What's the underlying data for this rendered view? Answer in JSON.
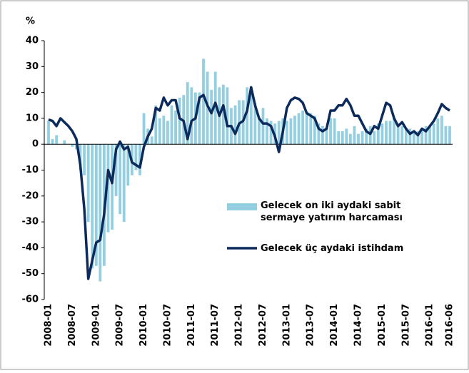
{
  "chart_data": {
    "type": "bar",
    "y_label": "%",
    "categories": [
      "2008-01",
      null,
      null,
      null,
      null,
      null,
      "2008-07",
      null,
      null,
      null,
      null,
      null,
      "2009-01",
      null,
      null,
      null,
      null,
      null,
      "2009-07",
      null,
      null,
      null,
      null,
      null,
      "2010-01",
      null,
      null,
      null,
      null,
      null,
      "2010-07",
      null,
      null,
      null,
      null,
      null,
      "2011-01",
      null,
      null,
      null,
      null,
      null,
      "2011-07",
      null,
      null,
      null,
      null,
      null,
      "2012-01",
      null,
      null,
      null,
      null,
      null,
      "2012-07",
      null,
      null,
      null,
      null,
      null,
      "2013-01",
      null,
      null,
      null,
      null,
      null,
      "2013-07",
      null,
      null,
      null,
      null,
      null,
      "2014-01",
      null,
      null,
      null,
      null,
      null,
      "2014-07",
      null,
      null,
      null,
      null,
      null,
      "2015-01",
      null,
      null,
      null,
      null,
      null,
      "2015-07",
      null,
      null,
      null,
      null,
      null,
      "2016-01",
      null,
      null,
      null,
      null,
      "2016-06"
    ],
    "series": [
      {
        "name": "Gelecek on iki aydaki sabit sermaye yatırım harcaması",
        "type": "bar",
        "color": "#93cfe0",
        "values": [
          9,
          2,
          3.5,
          0,
          1.5,
          0,
          -1,
          -2,
          -10,
          -12,
          -30,
          -48,
          -47,
          -53,
          -47,
          -34,
          -33,
          -20,
          -27,
          -30,
          -16,
          -12,
          -10,
          -12,
          12,
          6,
          3,
          15,
          10,
          11,
          9,
          15,
          13,
          18,
          19,
          24,
          22,
          20,
          20,
          33,
          28,
          21,
          28,
          22,
          23,
          22,
          14,
          15,
          17,
          17,
          22,
          22,
          16,
          10,
          14,
          10,
          9,
          8,
          9,
          10,
          9,
          10,
          11,
          12,
          13,
          12.5,
          12,
          11,
          8,
          7,
          6,
          10,
          10,
          5,
          5,
          6,
          4,
          7,
          4,
          5,
          6,
          7,
          5,
          8,
          8,
          9,
          9,
          10,
          8,
          7,
          6,
          6,
          5,
          5,
          6,
          7,
          7,
          8,
          10,
          11,
          7,
          7
        ]
      },
      {
        "name": "Gelecek üç aydaki istihdam",
        "type": "line",
        "color": "#0c2a5c",
        "values": [
          9.5,
          9,
          7,
          10,
          8.5,
          7,
          5,
          2,
          -8,
          -25,
          -52,
          -45,
          -38,
          -37,
          -27,
          -10,
          -15,
          -2,
          1,
          -2,
          -1,
          -7,
          -8,
          -9,
          -1,
          3,
          6,
          14,
          13,
          18,
          15,
          17,
          17,
          10,
          9,
          2,
          9,
          10,
          18,
          19,
          15,
          12,
          16,
          11,
          15,
          7,
          7,
          4,
          8,
          9,
          13,
          22,
          15,
          10,
          8,
          8,
          7,
          3,
          -3,
          5,
          14,
          17,
          18,
          17.5,
          16,
          12,
          11,
          10,
          6,
          5,
          6,
          13,
          13,
          15,
          15,
          17.5,
          15,
          11,
          11,
          8,
          5,
          4,
          7,
          6,
          11,
          16,
          15,
          10,
          7,
          8.5,
          6,
          4,
          5,
          3.5,
          6,
          5,
          7,
          9,
          12,
          15.5,
          14,
          13
        ]
      }
    ],
    "ylim": [
      -60,
      40
    ],
    "yticks": [
      -60,
      -50,
      -40,
      -30,
      -20,
      -10,
      0,
      10,
      20,
      30,
      40
    ]
  }
}
